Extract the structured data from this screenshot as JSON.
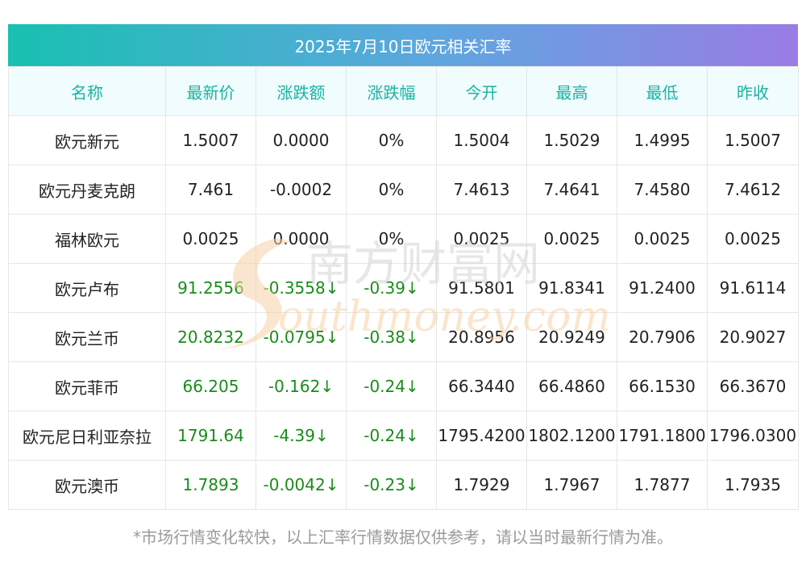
{
  "title": "2025年7月10日欧元相关汇率",
  "colors": {
    "header_text": "#19b3a4",
    "down": "#1a8c1a",
    "title_start": "#19c0b1",
    "title_end": "#9a7ce4"
  },
  "headers": [
    "名称",
    "最新价",
    "涨跌额",
    "涨跌幅",
    "今开",
    "最高",
    "最低",
    "昨收"
  ],
  "rows": [
    {
      "cells": [
        "欧元新元",
        "1.5007",
        "0.0000",
        "0%",
        "1.5004",
        "1.5029",
        "1.4995",
        "1.5007"
      ],
      "down": false
    },
    {
      "cells": [
        "欧元丹麦克朗",
        "7.461",
        "-0.0002",
        "0%",
        "7.4613",
        "7.4641",
        "7.4580",
        "7.4612"
      ],
      "down": false
    },
    {
      "cells": [
        "福林欧元",
        "0.0025",
        "0.0000",
        "0%",
        "0.0025",
        "0.0025",
        "0.0025",
        "0.0025"
      ],
      "down": false
    },
    {
      "cells": [
        "欧元卢布",
        "91.2556",
        "-0.3558↓",
        "-0.39↓",
        "91.5801",
        "91.8341",
        "91.2400",
        "91.6114"
      ],
      "down": true
    },
    {
      "cells": [
        "欧元兰币",
        "20.8232",
        "-0.0795↓",
        "-0.38↓",
        "20.8956",
        "20.9249",
        "20.7906",
        "20.9027"
      ],
      "down": true
    },
    {
      "cells": [
        "欧元菲币",
        "66.205",
        "-0.162↓",
        "-0.24↓",
        "66.3440",
        "66.4860",
        "66.1530",
        "66.3670"
      ],
      "down": true
    },
    {
      "cells": [
        "欧元尼日利亚奈拉",
        "1791.64",
        "-4.39↓",
        "-0.24↓",
        "1795.4200",
        "1802.1200",
        "1791.1800",
        "1796.0300"
      ],
      "down": true
    },
    {
      "cells": [
        "欧元澳币",
        "1.7893",
        "-0.0042↓",
        "-0.23↓",
        "1.7929",
        "1.7967",
        "1.7877",
        "1.7935"
      ],
      "down": true
    }
  ],
  "watermark": {
    "cn": "南方财富网",
    "en": "outhmoney.com",
    "logo_letter": "S"
  },
  "footnote": "*市场行情变化较快，以上汇率行情数据仅供参考，请以当时最新行情为准。"
}
